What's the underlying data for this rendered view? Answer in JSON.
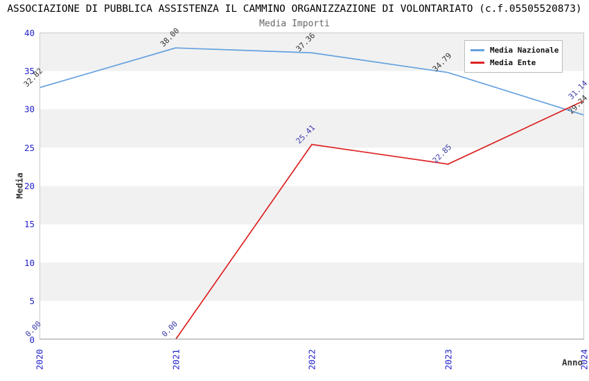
{
  "chart_data": {
    "type": "line",
    "title": "ASSOCIAZIONE DI PUBBLICA ASSISTENZA IL CAMMINO ORGANIZZAZIONE DI VOLONTARIATO (c.f.05505520873)",
    "subtitle": "Media Importi",
    "xlabel": "Anno",
    "ylabel": "Media",
    "categories": [
      "2020",
      "2021",
      "2022",
      "2023",
      "2024"
    ],
    "series": [
      {
        "name": "Media Nazionale",
        "color": "#64A1DF",
        "label_color": "#333333",
        "values": [
          32.82,
          38.0,
          37.36,
          34.79,
          29.24
        ]
      },
      {
        "name": "Media Ente",
        "color": "#DD2222",
        "label_color": "#3A3AA8",
        "values": [
          0.0,
          0.0,
          25.41,
          22.85,
          31.14
        ]
      }
    ],
    "ylim": [
      0,
      40
    ],
    "ytick_step": 5,
    "yticks": [
      0,
      5,
      10,
      15,
      20,
      25,
      30,
      35,
      40
    ],
    "grid": "horizontal-bands",
    "band_colors": [
      "#F1F1F1",
      "#FFFFFF"
    ],
    "legend_position": "top-right",
    "axis_tick_color": "#2222CC",
    "value_label_decimals": 2
  }
}
